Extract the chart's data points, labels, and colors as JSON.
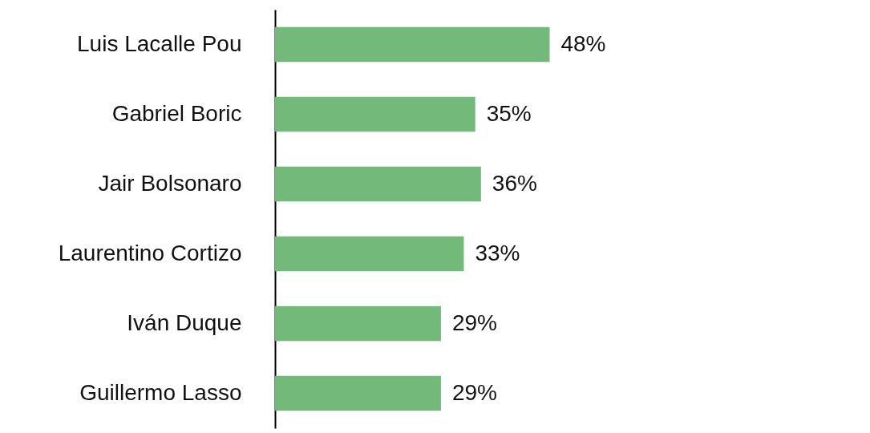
{
  "chart_data": {
    "type": "bar",
    "orientation": "horizontal",
    "categories": [
      "Luis Lacalle Pou",
      "Gabriel Boric",
      "Jair Bolsonaro",
      "Laurentino Cortizo",
      "Iván Duque",
      "Guillermo Lasso"
    ],
    "values": [
      48,
      35,
      36,
      33,
      29,
      29
    ],
    "value_labels": [
      "48%",
      "35%",
      "36%",
      "33%",
      "29%",
      "29%"
    ],
    "color": "#72b97a",
    "xlim": [
      0,
      104
    ]
  }
}
